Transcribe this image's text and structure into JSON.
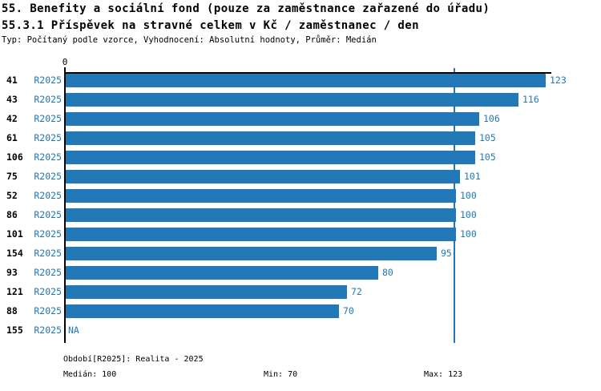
{
  "header": {
    "title_line1": "55. Benefity a sociální fond (pouze za zaměstnance zařazené do úřadu)",
    "title_line2": "55.3.1 Příspěvek na stravné celkem v Kč / zaměstnanec / den",
    "subtitle": "Typ: Počítaný podle vzorce, Vyhodnocení: Absolutní hodnoty, Průměr: Medián"
  },
  "chart_data": {
    "type": "bar",
    "orientation": "horizontal",
    "series_label": "R2025",
    "categories": [
      "41",
      "43",
      "42",
      "61",
      "106",
      "75",
      "52",
      "86",
      "101",
      "154",
      "93",
      "121",
      "88",
      "155"
    ],
    "values": [
      123,
      116,
      106,
      105,
      105,
      101,
      100,
      100,
      100,
      95,
      80,
      72,
      70,
      null
    ],
    "value_labels": [
      "123",
      "116",
      "106",
      "105",
      "105",
      "101",
      "100",
      "100",
      "100",
      "95",
      "80",
      "72",
      "70",
      "NA"
    ],
    "x_axis": {
      "zero_label": "0",
      "min": 0,
      "max_shown": 123,
      "grid": false
    },
    "median_line_value": 100,
    "legend_position": "none",
    "bar_color": "#2277b6",
    "value_label_color": "#2277b6",
    "category_label_color": "#000000",
    "axis_color": "#000000"
  },
  "footer": {
    "period": "Období[R2025]: Realita - 2025",
    "median": "Medián: 100",
    "min": "Min: 70",
    "max": "Max: 123"
  }
}
